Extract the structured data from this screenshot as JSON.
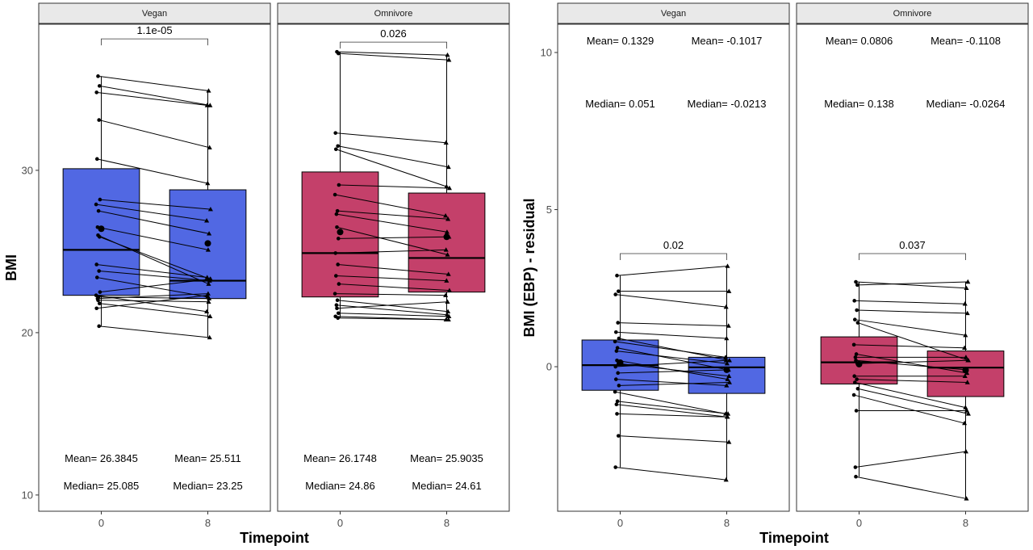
{
  "chart_data": [
    {
      "type": "boxplot",
      "ylabel": "BMI",
      "xlabel": "Timepoint",
      "ylim": [
        9,
        39
      ],
      "yticks": [
        10,
        20,
        30
      ],
      "categories": [
        "0",
        "8"
      ],
      "grid": false,
      "facets": [
        {
          "strip": "Vegan",
          "color": "#5168e3",
          "pvalue": "1.1e-05",
          "bracket_y": 38.1,
          "boxes": [
            {
              "q1": 22.3,
              "median": 25.1,
              "q3": 30.1,
              "min": 20.4,
              "max": 35.8,
              "mean": 26.4
            },
            {
              "q1": 22.1,
              "median": 23.2,
              "q3": 28.8,
              "min": 19.7,
              "max": 34.9,
              "mean": 25.5
            }
          ],
          "pairs": [
            [
              35.8,
              34.9
            ],
            [
              35.2,
              34.0
            ],
            [
              34.8,
              34.0
            ],
            [
              33.1,
              31.4
            ],
            [
              30.7,
              29.2
            ],
            [
              28.2,
              27.6
            ],
            [
              27.9,
              26.9
            ],
            [
              27.5,
              26.1
            ],
            [
              26.5,
              25.1
            ],
            [
              26.0,
              23.0
            ],
            [
              25.9,
              23.3
            ],
            [
              24.2,
              23.4
            ],
            [
              23.8,
              23.2
            ],
            [
              23.4,
              22.2
            ],
            [
              22.5,
              23.3
            ],
            [
              22.3,
              21.3
            ],
            [
              22.2,
              22.1
            ],
            [
              22.1,
              22.4
            ],
            [
              22.0,
              21.9
            ],
            [
              21.8,
              21.0
            ],
            [
              21.5,
              22.3
            ],
            [
              20.4,
              19.7
            ]
          ],
          "annotations": [
            {
              "group": 0,
              "mean_text": "Mean= 26.3845",
              "median_text": "Median= 25.085"
            },
            {
              "group": 1,
              "mean_text": "Mean= 25.511",
              "median_text": "Median= 23.25"
            }
          ]
        },
        {
          "strip": "Omnivore",
          "color": "#c4406a",
          "pvalue": "0.026",
          "bracket_y": 37.9,
          "boxes": [
            {
              "q1": 22.2,
              "median": 24.9,
              "q3": 29.9,
              "min": 20.9,
              "max": 37.3,
              "mean": 26.2
            },
            {
              "q1": 22.5,
              "median": 24.6,
              "q3": 28.6,
              "min": 20.8,
              "max": 37.1,
              "mean": 25.9
            }
          ],
          "pairs": [
            [
              37.3,
              37.1
            ],
            [
              37.2,
              36.8
            ],
            [
              32.3,
              31.7
            ],
            [
              31.5,
              30.2
            ],
            [
              31.3,
              29.0
            ],
            [
              29.1,
              28.9
            ],
            [
              28.5,
              27.2
            ],
            [
              27.5,
              27.0
            ],
            [
              27.3,
              26.2
            ],
            [
              26.5,
              24.8
            ],
            [
              25.8,
              25.9
            ],
            [
              24.9,
              25.1
            ],
            [
              24.2,
              23.6
            ],
            [
              23.5,
              23.2
            ],
            [
              23.0,
              22.6
            ],
            [
              22.4,
              22.3
            ],
            [
              22.0,
              21.3
            ],
            [
              21.7,
              21.1
            ],
            [
              21.5,
              21.9
            ],
            [
              21.2,
              21.0
            ],
            [
              21.0,
              20.8
            ],
            [
              20.9,
              20.8
            ]
          ],
          "annotations": [
            {
              "group": 0,
              "mean_text": "Mean= 26.1748",
              "median_text": "Median= 24.86"
            },
            {
              "group": 1,
              "mean_text": "Mean= 25.9035",
              "median_text": "Median= 24.61"
            }
          ]
        }
      ]
    },
    {
      "type": "boxplot",
      "ylabel": "BMI (EBP) - residual",
      "xlabel": "Timepoint",
      "ylim": [
        -4.6,
        10.9
      ],
      "yticks": [
        0,
        5,
        10
      ],
      "categories": [
        "0",
        "8"
      ],
      "grid": false,
      "facets": [
        {
          "strip": "Vegan",
          "color": "#5168e3",
          "pvalue": "0.02",
          "bracket_y": 3.6,
          "boxes": [
            {
              "q1": -0.75,
              "median": 0.05,
              "q3": 0.85,
              "min": -3.2,
              "max": 2.9,
              "mean": 0.13
            },
            {
              "q1": -0.85,
              "median": -0.02,
              "q3": 0.3,
              "min": -3.6,
              "max": 3.2,
              "mean": -0.1
            }
          ],
          "pairs": [
            [
              2.9,
              3.2
            ],
            [
              2.4,
              2.4
            ],
            [
              2.3,
              1.9
            ],
            [
              1.4,
              1.3
            ],
            [
              1.1,
              0.9
            ],
            [
              0.9,
              0.2
            ],
            [
              0.8,
              0.3
            ],
            [
              0.6,
              -0.1
            ],
            [
              0.5,
              0.1
            ],
            [
              0.2,
              -0.4
            ],
            [
              0.1,
              -0.3
            ],
            [
              0.0,
              0.2
            ],
            [
              -0.2,
              -0.1
            ],
            [
              -0.4,
              -0.6
            ],
            [
              -0.6,
              -0.5
            ],
            [
              -0.8,
              -1.5
            ],
            [
              -1.1,
              -1.5
            ],
            [
              -1.2,
              -1.6
            ],
            [
              -1.5,
              -1.6
            ],
            [
              -2.2,
              -2.4
            ],
            [
              -3.2,
              -3.6
            ]
          ],
          "annotations": [
            {
              "group": 0,
              "mean_text": "Mean= 0.1329",
              "median_text": "Median= 0.051"
            },
            {
              "group": 1,
              "mean_text": "Mean= -0.1017",
              "median_text": "Median= -0.0213"
            }
          ]
        },
        {
          "strip": "Omnivore",
          "color": "#c4406a",
          "pvalue": "0.037",
          "bracket_y": 3.6,
          "boxes": [
            {
              "q1": -0.55,
              "median": 0.14,
              "q3": 0.95,
              "min": -3.5,
              "max": 2.7,
              "mean": 0.08
            },
            {
              "q1": -0.95,
              "median": -0.03,
              "q3": 0.5,
              "min": -4.2,
              "max": 2.7,
              "mean": -0.11
            }
          ],
          "pairs": [
            [
              2.7,
              2.5
            ],
            [
              2.6,
              2.7
            ],
            [
              2.1,
              2.0
            ],
            [
              1.8,
              1.7
            ],
            [
              1.5,
              1.0
            ],
            [
              1.4,
              0.2
            ],
            [
              0.7,
              0.6
            ],
            [
              0.4,
              -0.2
            ],
            [
              0.3,
              0.3
            ],
            [
              0.2,
              -0.1
            ],
            [
              0.1,
              0.2
            ],
            [
              -0.3,
              -0.3
            ],
            [
              -0.4,
              -0.5
            ],
            [
              -0.5,
              -1.3
            ],
            [
              -0.7,
              -1.5
            ],
            [
              -0.9,
              -1.8
            ],
            [
              -1.4,
              -1.4
            ],
            [
              -3.2,
              -2.7
            ],
            [
              -3.5,
              -4.2
            ]
          ],
          "annotations": [
            {
              "group": 0,
              "mean_text": "Mean= 0.0806",
              "median_text": "Median= 0.138"
            },
            {
              "group": 1,
              "mean_text": "Mean= -0.1108",
              "median_text": "Median= -0.0264"
            }
          ]
        }
      ]
    }
  ]
}
